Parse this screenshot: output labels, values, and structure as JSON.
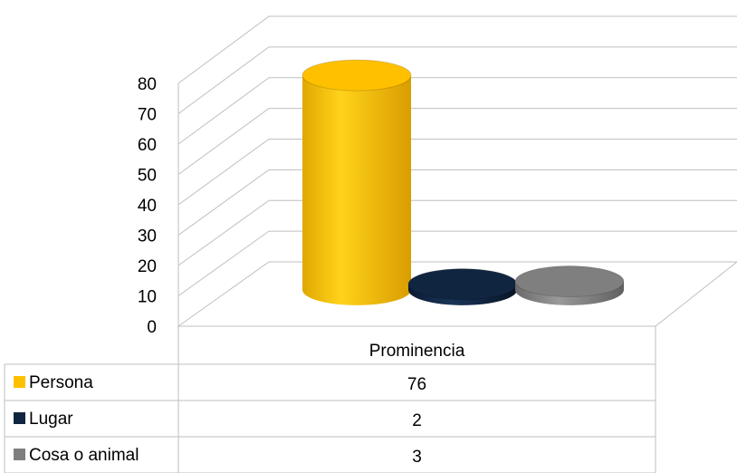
{
  "chart_data": {
    "type": "bar",
    "style": "3d-cylinder",
    "categories": [
      "Prominencia"
    ],
    "series": [
      {
        "name": "Persona",
        "values": [
          76
        ],
        "color": "#FFC000"
      },
      {
        "name": "Lugar",
        "values": [
          2
        ],
        "color": "#0F2540"
      },
      {
        "name": "Cosa o animal",
        "values": [
          3
        ],
        "color": "#7F7F7F"
      }
    ],
    "ylim": [
      0,
      80
    ],
    "yticks": [
      "0",
      "10",
      "20",
      "30",
      "40",
      "50",
      "60",
      "70",
      "80"
    ],
    "grid": true,
    "legend": "data-table-below",
    "data_table": true
  }
}
